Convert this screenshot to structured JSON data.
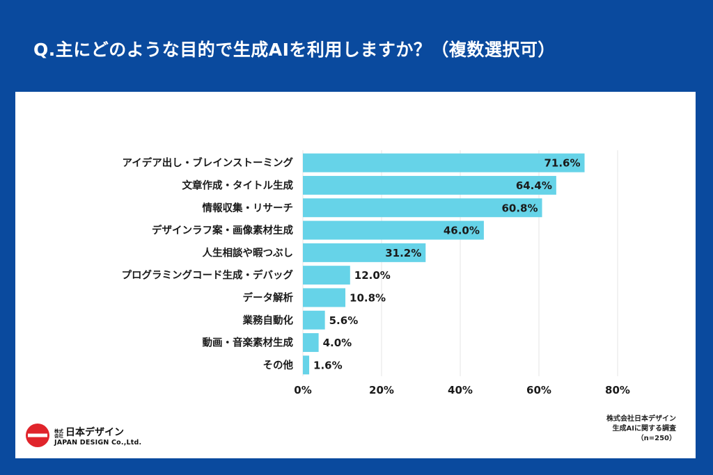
{
  "title": "Q.主にどのような目的で生成AIを利用しますか？（複数選択可）",
  "chart_data": {
    "type": "bar",
    "orientation": "horizontal",
    "categories": [
      "アイデア出し・ブレインストーミング",
      "文章作成・タイトル生成",
      "情報収集・リサーチ",
      "デザインラフ案・画像素材生成",
      "人生相談や暇つぶし",
      "プログラミングコード生成・デバッグ",
      "データ解析",
      "業務自動化",
      "動画・音楽素材生成",
      "その他"
    ],
    "values": [
      71.6,
      64.4,
      60.8,
      46.0,
      31.2,
      12.0,
      10.8,
      5.6,
      4.0,
      1.6
    ],
    "value_labels": [
      "71.6%",
      "64.4%",
      "60.8%",
      "46.0%",
      "31.2%",
      "12.0%",
      "10.8%",
      "5.6%",
      "4.0%",
      "1.6%"
    ],
    "xlim": [
      0,
      80
    ],
    "ticks": [
      0,
      20,
      40,
      60,
      80
    ],
    "tick_labels": [
      "0%",
      "20%",
      "40%",
      "60%",
      "80%"
    ],
    "bar_color": "#66d3e8",
    "grid": true
  },
  "source": {
    "line1": "株式会社日本デザイン",
    "line2": "生成AIに関する調査",
    "line3": "（n=250）"
  },
  "logo": {
    "small": "株式会社",
    "main": "日本デザイン",
    "english": "JAPAN DESIGN Co.,Ltd."
  },
  "colors": {
    "background": "#0a4a9e",
    "panel": "#ffffff",
    "logo_red": "#e0242b"
  }
}
